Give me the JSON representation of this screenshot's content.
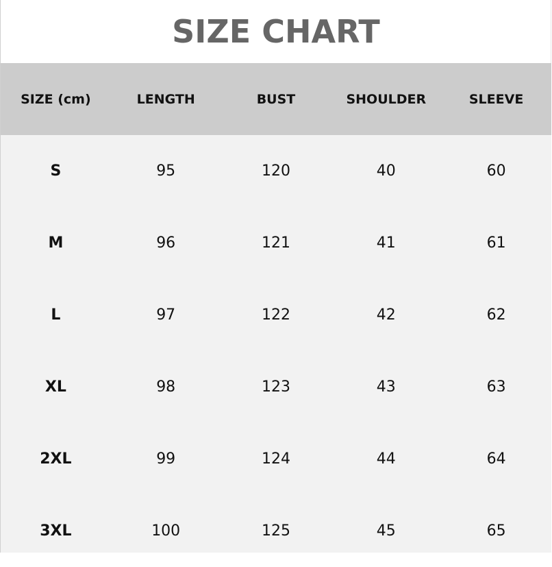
{
  "title": "SIZE CHART",
  "headers": [
    "SIZE  (cm)",
    "LENGTH",
    "BUST",
    "SHOULDER",
    "SLEEVE"
  ],
  "rows": [
    [
      "S",
      "95",
      "120",
      "40",
      "60"
    ],
    [
      "M",
      "96",
      "121",
      "41",
      "61"
    ],
    [
      "L",
      "97",
      "122",
      "42",
      "62"
    ],
    [
      "XL",
      "98",
      "123",
      "43",
      "63"
    ],
    [
      "2XL",
      "99",
      "124",
      "44",
      "64"
    ],
    [
      "3XL",
      "100",
      "125",
      "45",
      "65"
    ]
  ],
  "colors": {
    "title": "#666666",
    "header_bg": "#cccccc",
    "body_bg": "#f2f2f2"
  }
}
